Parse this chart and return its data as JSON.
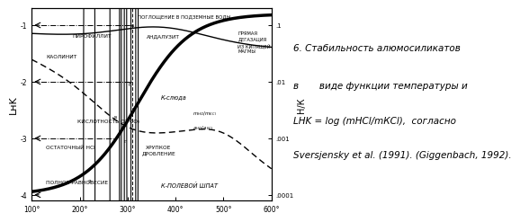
{
  "xlim": [
    100,
    600
  ],
  "ylim": [
    -4.1,
    -0.7
  ],
  "xticks": [
    100,
    200,
    300,
    400,
    500,
    600
  ],
  "xtick_labels": [
    "100°",
    "200°",
    "300°",
    "400°",
    "500°",
    "600°"
  ],
  "yticks_left": [
    -4,
    -3,
    -2,
    -1
  ],
  "ytick_labels_left": [
    "-4",
    "-3",
    "-2",
    "-1"
  ],
  "ytick_positions_right": [
    -1,
    -2,
    -3,
    -4
  ],
  "ytick_labels_right": [
    ".1",
    ".01",
    ".001",
    ".0001"
  ],
  "ylabel_left": "LнK",
  "ylabel_right": "Н/К",
  "caption_line1": "6. Стабильность алюмосиликатов",
  "caption_line2": "в       виде функции температуры и",
  "caption_line3": "LНK = log (mНCl/mКCl),  согласно",
  "caption_line4": "Sversjensky et al. (1991). (Giggenbach, 1992).",
  "background": "#ffffff"
}
